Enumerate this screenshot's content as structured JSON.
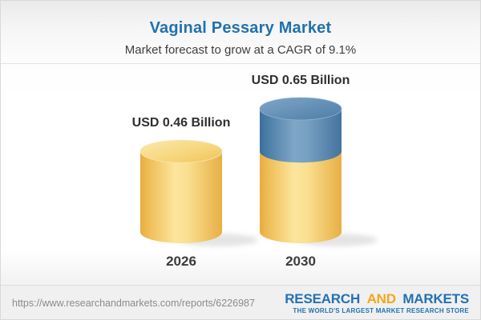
{
  "header": {
    "title": "Vaginal Pessary Market",
    "subtitle": "Market forecast to grow at a CAGR of 9.1%"
  },
  "chart_data": {
    "type": "bar",
    "subtype": "3d-cylinder",
    "title": "Vaginal Pessary Market",
    "subtitle": "Market forecast to grow at a CAGR of 9.1%",
    "unit": "USD Billion",
    "cagr_percent": 9.1,
    "categories": [
      "2026",
      "2030"
    ],
    "values": [
      0.46,
      0.65
    ],
    "value_labels": [
      "USD 0.46 Billion",
      "USD 0.65 Billion"
    ],
    "bars": [
      {
        "category": "2026",
        "value": 0.46,
        "value_label": "USD 0.46 Billion",
        "segments": [
          {
            "value": 0.46,
            "palette": "gold"
          }
        ]
      },
      {
        "category": "2030",
        "value": 0.65,
        "value_label": "USD 0.65 Billion",
        "segments": [
          {
            "value": 0.46,
            "palette": "gold"
          },
          {
            "value": 0.19,
            "palette": "blue"
          }
        ]
      }
    ],
    "colors": {
      "gold": "#F2C964",
      "blue": "#5587B2",
      "title_blue": "#2171AE"
    },
    "legend": "none",
    "grid": false,
    "ylim": [
      0,
      0.7
    ],
    "notes": "2030 bar shows growth above the 2026 level as a blue top segment"
  },
  "footer": {
    "url": "https://www.researchandmarkets.com/reports/6226987",
    "logo": {
      "word1": "RESEARCH",
      "word2": "AND",
      "word3": "MARKETS",
      "tagline": "THE WORLD'S LARGEST MARKET RESEARCH STORE",
      "brand_blue": "#2271b4",
      "brand_orange": "#f2a71c"
    }
  }
}
